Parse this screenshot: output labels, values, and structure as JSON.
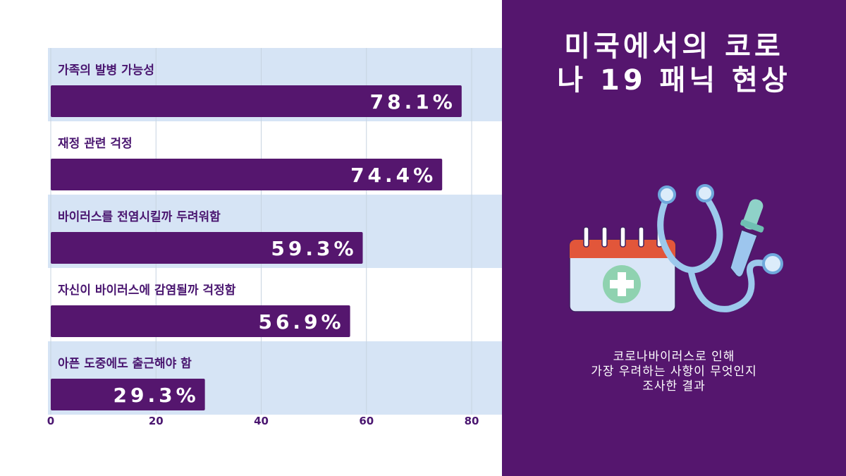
{
  "chart_data": {
    "type": "bar",
    "orientation": "horizontal",
    "categories": [
      "가족의 발병 가능성",
      "재정 관련 걱정",
      "바이러스를 전염시킬까 두려워함",
      "자신이 바이러스에 감염될까 걱정함",
      "아픈 도중에도 출근해야 함"
    ],
    "values": [
      78.1,
      74.4,
      59.3,
      56.9,
      29.3
    ],
    "value_labels": [
      "78.1%",
      "74.4%",
      "59.3%",
      "56.9%",
      "29.3%"
    ],
    "xlim": [
      0,
      85
    ],
    "xticks": [
      0,
      20,
      40,
      60,
      80
    ],
    "xtick_labels": [
      "0",
      "20",
      "40",
      "60",
      "80"
    ],
    "grid": true,
    "title": "",
    "xlabel": "",
    "ylabel": ""
  },
  "side_panel": {
    "title_lines": [
      "미국에서의 코로",
      "나 19 패닉 현상"
    ],
    "subtitle_lines": [
      "코로나바이러스로 인해",
      "가장 우려하는 사항이 무엇인지",
      "조사한 결과"
    ]
  },
  "illustration": {
    "calendar_icon": "calendar-medical-icon",
    "stethoscope_icon": "stethoscope-icon",
    "dropper_icon": "dropper-icon"
  },
  "colors": {
    "bar": "#55166e",
    "band": "#d6e4f5",
    "panel": "#55166e",
    "text_dark": "#4a1670",
    "gridline": "#c7d3e0"
  }
}
